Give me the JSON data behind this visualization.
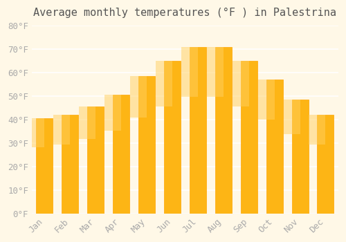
{
  "title": "Average monthly temperatures (°F ) in Palestrina",
  "months": [
    "Jan",
    "Feb",
    "Mar",
    "Apr",
    "May",
    "Jun",
    "Jul",
    "Aug",
    "Sep",
    "Oct",
    "Nov",
    "Dec"
  ],
  "values": [
    40.5,
    42,
    45.5,
    50.5,
    58.5,
    65,
    71,
    71,
    65,
    57,
    48.5,
    42
  ],
  "bar_color_top": "#FDB515",
  "bar_color_bottom": "#FFA500",
  "background_color": "#FFF8E7",
  "ylim": [
    0,
    80
  ],
  "yticks": [
    0,
    10,
    20,
    30,
    40,
    50,
    60,
    70,
    80
  ],
  "grid_color": "#FFFFFF",
  "title_fontsize": 11,
  "tick_fontsize": 9,
  "tick_label_color": "#AAAAAA",
  "bar_edge_color": "#FFA500"
}
